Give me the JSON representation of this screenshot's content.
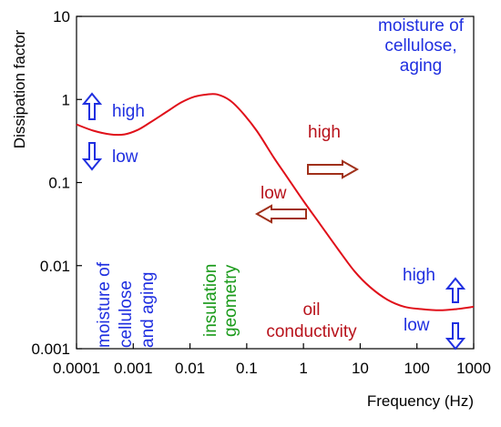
{
  "chart_data": {
    "type": "line",
    "x_scale": "log",
    "y_scale": "log",
    "xlim": [
      0.0001,
      1000
    ],
    "ylim": [
      0.001,
      10
    ],
    "xlabel": "Frequency (Hz)",
    "ylabel": "Dissipation factor",
    "x_ticks": [
      {
        "value": 0.0001,
        "label": "0.0001"
      },
      {
        "value": 0.001,
        "label": "0.001"
      },
      {
        "value": 0.01,
        "label": "0.01"
      },
      {
        "value": 0.1,
        "label": "0.1"
      },
      {
        "value": 1,
        "label": "1"
      },
      {
        "value": 10,
        "label": "10"
      },
      {
        "value": 100,
        "label": "100"
      },
      {
        "value": 1000,
        "label": "1000"
      }
    ],
    "y_ticks": [
      {
        "value": 0.001,
        "label": "0.001"
      },
      {
        "value": 0.01,
        "label": "0.01"
      },
      {
        "value": 0.1,
        "label": "0.1"
      },
      {
        "value": 1,
        "label": "1"
      },
      {
        "value": 10,
        "label": "10"
      }
    ],
    "grid": false,
    "legend": "none",
    "colors": {
      "curve": "#e0101a",
      "blue": "#1f2fe0",
      "green": "#1a9a1a",
      "dark_red": "#b8121b",
      "arrow_brown": "#a0301a"
    },
    "series": [
      {
        "color": "#e0101a",
        "x": [
          0.0001,
          0.0002,
          0.0004,
          0.0007,
          0.0012,
          0.002,
          0.004,
          0.007,
          0.012,
          0.02,
          0.03,
          0.05,
          0.08,
          0.15,
          0.3,
          0.5,
          1,
          2,
          4,
          8,
          15,
          30,
          60,
          120,
          250,
          500,
          1000
        ],
        "y": [
          0.5,
          0.42,
          0.38,
          0.38,
          0.43,
          0.53,
          0.72,
          0.92,
          1.08,
          1.15,
          1.15,
          0.98,
          0.72,
          0.42,
          0.2,
          0.12,
          0.06,
          0.031,
          0.016,
          0.0085,
          0.0055,
          0.0039,
          0.0032,
          0.003,
          0.0029,
          0.003,
          0.0032
        ]
      }
    ],
    "annotations": [
      {
        "id": "moisture_top",
        "lines": [
          "moisture of",
          "cellulose,",
          "aging"
        ],
        "color": "#1f2fe0"
      },
      {
        "id": "high_left",
        "text": "high",
        "color": "#1f2fe0",
        "arrow": "up"
      },
      {
        "id": "low_left",
        "text": "low",
        "color": "#1f2fe0",
        "arrow": "down"
      },
      {
        "id": "high_mid",
        "text": "high",
        "color": "#b8121b",
        "arrow": "right"
      },
      {
        "id": "low_mid",
        "text": "low",
        "color": "#b8121b",
        "arrow": "left"
      },
      {
        "id": "moisture_rot",
        "lines": [
          "moisture of",
          "cellulose",
          "and aging"
        ],
        "color": "#1f2fe0"
      },
      {
        "id": "insulation",
        "lines": [
          "insulation",
          "geometry"
        ],
        "color": "#1a9a1a"
      },
      {
        "id": "oil",
        "lines": [
          "oil",
          "conductivity"
        ],
        "color": "#b8121b"
      },
      {
        "id": "high_right",
        "text": "high",
        "color": "#1f2fe0",
        "arrow": "up"
      },
      {
        "id": "low_right",
        "text": "low",
        "color": "#1f2fe0",
        "arrow": "down"
      }
    ]
  }
}
